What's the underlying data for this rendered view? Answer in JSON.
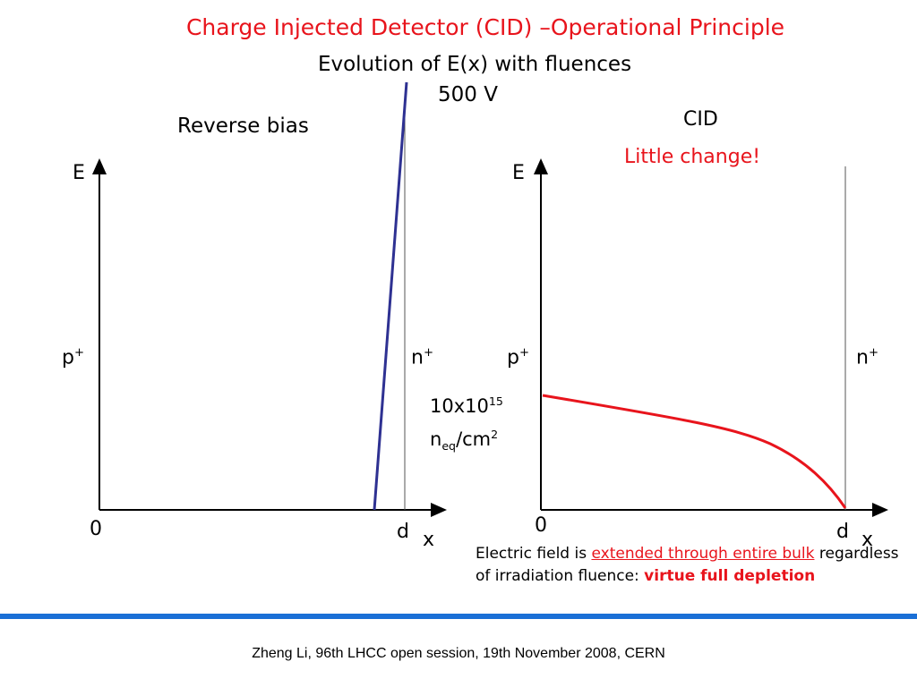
{
  "title": "Charge Injected Detector (CID) –Operational Principle",
  "subtitle": "Evolution of E(x) with fluences",
  "voltage": "500 V",
  "left_panel": {
    "caption": "Reverse bias",
    "y_axis": "E",
    "x_axis": "x",
    "origin": "0",
    "d": "d",
    "p_plus": "p",
    "n_plus": "n",
    "sup": "+"
  },
  "right_panel": {
    "caption": "CID",
    "remark": "Little change!",
    "y_axis": "E",
    "x_axis": "x",
    "origin": "0",
    "d": "d",
    "p_plus": "p",
    "n_plus": "n",
    "sup": "+"
  },
  "fluence": {
    "line1": "10x10",
    "exp": "15",
    "n": "n",
    "sub": "eq",
    "unit": "/cm",
    "unit_exp": "2"
  },
  "note": {
    "part1": "Electric field is ",
    "emph": "extended through entire bulk",
    "part2": " regardless of irradiation fluence: ",
    "bold": "virtue full depletion"
  },
  "footer": "Zheng Li, 96th LHCC open session, 19th November 2008, CERN",
  "colors": {
    "accent_red": "#e8141c",
    "field_blue": "#2e3192",
    "divider_blue": "#1a6fd6"
  }
}
